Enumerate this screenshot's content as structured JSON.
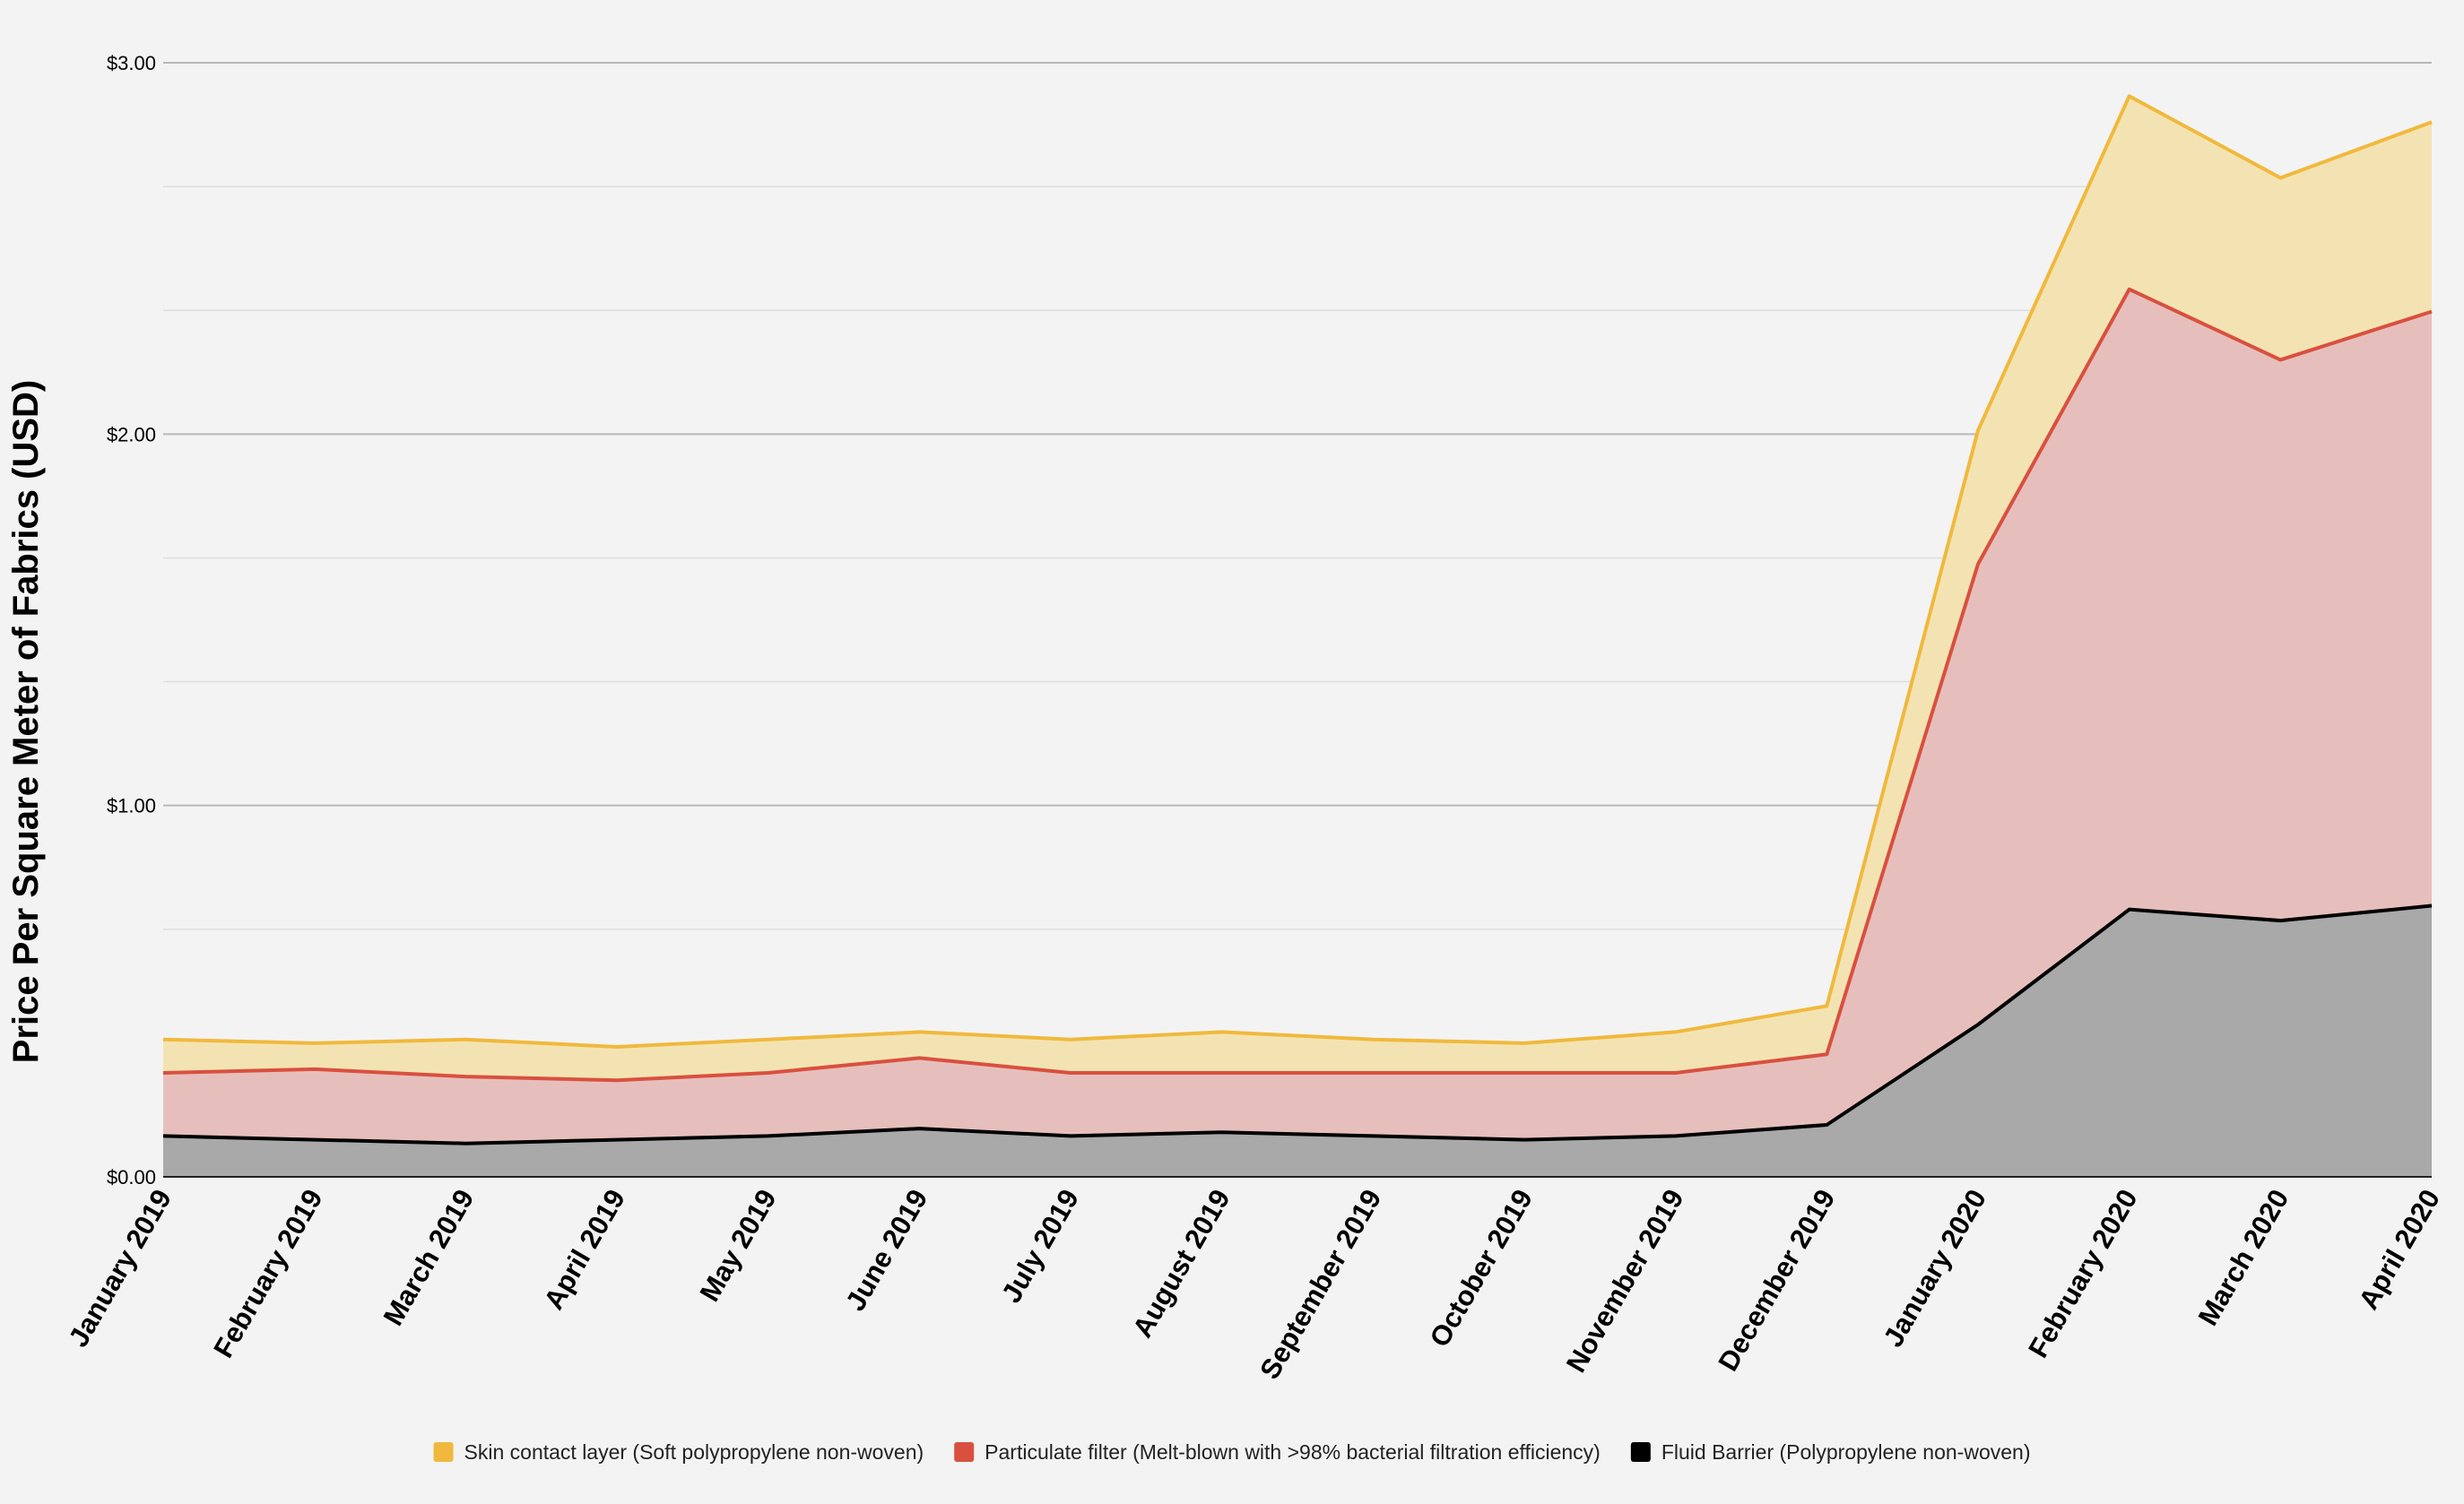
{
  "chart_data": {
    "type": "area",
    "stacked": true,
    "ylabel": "Price Per Square Meter of Fabrics (USD)",
    "xlabel": "",
    "ylim": [
      0,
      3
    ],
    "yticks": [
      "$0.00",
      "$1.00",
      "$2.00",
      "$3.00"
    ],
    "ytick_values": [
      0,
      1,
      2,
      3
    ],
    "grid": true,
    "legend_position": "bottom",
    "categories": [
      "January 2019",
      "February 2019",
      "March 2019",
      "April 2019",
      "May 2019",
      "June 2019",
      "July 2019",
      "August 2019",
      "September 2019",
      "October 2019",
      "November 2019",
      "December 2019",
      "January 2020",
      "February 2020",
      "March 2020",
      "April 2020"
    ],
    "series": [
      {
        "name": "Fluid Barrier (Polypropylene non-woven)",
        "color": "#000000",
        "fill": "#a9a9a9",
        "values": [
          0.11,
          0.1,
          0.09,
          0.1,
          0.11,
          0.13,
          0.11,
          0.12,
          0.11,
          0.1,
          0.11,
          0.14,
          0.41,
          0.72,
          0.69,
          0.73
        ]
      },
      {
        "name": "Particulate filter (Melt-blown with >98% bacterial filtration efficiency)",
        "color": "#d9503f",
        "fill": "#e6bfbc",
        "values": [
          0.17,
          0.19,
          0.18,
          0.16,
          0.17,
          0.19,
          0.17,
          0.16,
          0.17,
          0.18,
          0.17,
          0.19,
          1.24,
          1.67,
          1.51,
          1.6
        ]
      },
      {
        "name": "Skin contact layer (Soft polypropylene non-woven)",
        "color": "#f0b93d",
        "fill": "#f4e3b2",
        "values": [
          0.09,
          0.07,
          0.1,
          0.09,
          0.09,
          0.07,
          0.09,
          0.11,
          0.09,
          0.08,
          0.11,
          0.13,
          0.36,
          0.52,
          0.49,
          0.51
        ]
      }
    ],
    "legend_order": [
      "Skin contact layer (Soft polypropylene non-woven)",
      "Particulate filter (Melt-blown with >98% bacterial filtration efficiency)",
      "Fluid Barrier (Polypropylene non-woven)"
    ]
  }
}
